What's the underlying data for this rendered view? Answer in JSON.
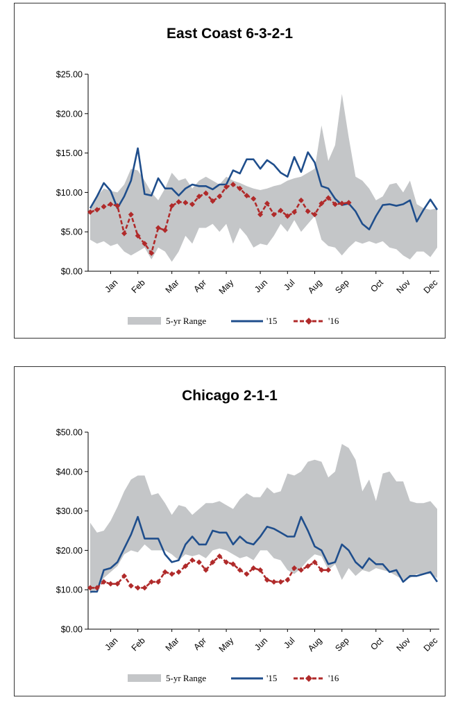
{
  "chart_data": [
    {
      "type": "line",
      "title": "East Coast  6-3-2-1",
      "ylim": [
        0,
        25
      ],
      "yticks": [
        0,
        5,
        10,
        15,
        20,
        25
      ],
      "ytick_labels": [
        "$0.00",
        "$5.00",
        "$10.00",
        "$15.00",
        "$20.00",
        "$25.00"
      ],
      "months": [
        "Jan",
        "Feb",
        "Mar",
        "Apr",
        "May",
        "Jun",
        "Jul",
        "Aug",
        "Sep",
        "Oct",
        "Nov",
        "Dec"
      ],
      "month_week": [
        3,
        7,
        12,
        16,
        20,
        25,
        29,
        33,
        37,
        42,
        46,
        50
      ],
      "legend": {
        "range": "5-yr Range",
        "s15": "'15",
        "s16": "'16"
      },
      "range_upper": [
        8,
        9.5,
        10.5,
        10.2,
        10,
        11,
        13,
        12.8,
        11.5,
        10,
        9,
        10.5,
        12.5,
        11.5,
        11.8,
        10.5,
        11.5,
        12,
        11.5,
        11,
        12,
        11.5,
        11.2,
        10.8,
        10.5,
        10.3,
        10.5,
        10.8,
        11,
        11.5,
        11.8,
        12,
        12.5,
        13,
        18.5,
        14,
        16,
        22.5,
        17,
        12,
        11.5,
        10.5,
        9,
        9.5,
        11,
        11.2,
        10,
        11.5,
        8.5,
        8,
        7.8,
        8
      ],
      "range_lower": [
        4,
        3.5,
        3.8,
        3.2,
        3.5,
        2.5,
        2,
        2.5,
        3,
        1.5,
        3,
        2.5,
        1.2,
        2.5,
        4.5,
        3.5,
        5.5,
        5.5,
        6,
        5,
        6,
        3.5,
        5.5,
        4.5,
        3,
        3.5,
        3.3,
        4.5,
        6,
        5,
        6.5,
        5,
        6,
        7,
        4,
        3.2,
        3,
        2,
        3,
        3.8,
        3.5,
        3.8,
        3.5,
        3.8,
        3,
        2.8,
        2,
        1.5,
        2.5,
        2.5,
        1.8,
        3
      ],
      "series15": [
        8,
        9.5,
        11.2,
        10.2,
        8,
        9.5,
        11.5,
        15.6,
        9.8,
        9.6,
        11.8,
        10.5,
        10.5,
        9.6,
        10.5,
        11,
        10.8,
        10.8,
        10.4,
        11,
        11,
        12.8,
        12.4,
        14.2,
        14.2,
        13,
        14.1,
        13.5,
        12.5,
        12,
        14.5,
        12.6,
        15.1,
        13.8,
        10.8,
        10.5,
        9.2,
        8.4,
        8.6,
        7.6,
        6,
        5.3,
        7,
        8.4,
        8.5,
        8.3,
        8.5,
        9,
        6.3,
        7.8,
        9.1,
        7.8
      ],
      "series16": [
        7.5,
        7.8,
        8.2,
        8.5,
        8.3,
        4.8,
        7.2,
        4.5,
        3.5,
        2.3,
        5.5,
        5.2,
        8.3,
        8.8,
        8.7,
        8.5,
        9.5,
        9.9,
        8.9,
        9.5,
        10.7,
        11,
        10.5,
        9.6,
        9.2,
        7.2,
        8.6,
        7.2,
        7.7,
        7,
        7.5,
        9,
        7.6,
        7.2,
        8.6,
        9.3,
        8.5,
        8.6,
        8.7
      ]
    },
    {
      "type": "line",
      "title": "Chicago  2-1-1",
      "ylim": [
        0,
        50
      ],
      "yticks": [
        0,
        10,
        20,
        30,
        40,
        50
      ],
      "ytick_labels": [
        "$0.00",
        "$10.00",
        "$20.00",
        "$30.00",
        "$40.00",
        "$50.00"
      ],
      "months": [
        "Jan",
        "Feb",
        "Mar",
        "Apr",
        "May",
        "Jun",
        "Jul",
        "Aug",
        "Sep",
        "Oct",
        "Nov",
        "Dec"
      ],
      "month_week": [
        3,
        7,
        12,
        16,
        20,
        25,
        29,
        33,
        37,
        42,
        46,
        50
      ],
      "legend": {
        "range": "5-yr Range",
        "s15": "'15",
        "s16": "'16"
      },
      "range_upper": [
        27,
        24.5,
        25,
        27.5,
        31,
        35,
        38,
        39,
        39,
        34,
        34.5,
        32,
        29,
        31.5,
        31,
        29,
        30.5,
        32,
        32,
        32.5,
        31.5,
        30.5,
        33,
        34.5,
        33.5,
        33.5,
        36,
        34.5,
        35,
        39.5,
        39,
        40,
        42.5,
        43,
        42.5,
        38.5,
        40,
        47,
        46,
        43,
        35,
        38,
        32.5,
        39.5,
        40,
        37.5,
        37.5,
        32.5,
        32,
        32,
        32.5,
        30.5
      ],
      "range_lower": [
        9,
        10,
        13,
        14.5,
        16,
        19,
        20,
        19.5,
        21.5,
        20,
        20,
        20,
        19,
        17.5,
        19,
        18.5,
        19,
        18,
        20,
        20.5,
        20,
        19,
        18,
        18.5,
        17.5,
        20,
        20,
        18,
        17.5,
        15,
        14,
        15.5,
        17.5,
        19,
        18.5,
        15,
        16.5,
        12.5,
        15.5,
        13.5,
        15,
        14.5,
        15.5,
        15,
        14.5,
        13.5,
        12.5,
        13,
        14,
        14,
        14,
        13
      ],
      "series15": [
        9.5,
        9.5,
        15,
        15.5,
        17,
        20.5,
        24,
        28.5,
        23,
        23,
        23,
        19,
        17,
        17.5,
        21.5,
        23.5,
        21.5,
        21.5,
        25,
        24.5,
        24.5,
        21.5,
        23.5,
        22,
        21.5,
        23.5,
        26,
        25.5,
        24.5,
        23.5,
        23.5,
        28.5,
        25,
        21,
        20,
        16.5,
        17,
        21.5,
        20,
        17,
        15.5,
        18,
        16.5,
        16.5,
        14.5,
        15,
        12,
        13.5,
        13.5,
        14,
        14.5,
        12
      ],
      "series16": [
        10.5,
        10.5,
        12,
        11.5,
        11.5,
        13.5,
        11,
        10.5,
        10.5,
        12,
        12,
        14.5,
        14,
        14.5,
        16,
        17.5,
        17,
        15,
        17,
        18.5,
        17,
        16.5,
        15,
        14,
        15.5,
        15,
        12.5,
        12,
        12,
        12.5,
        15.5,
        15,
        16,
        17,
        15,
        15
      ]
    }
  ]
}
